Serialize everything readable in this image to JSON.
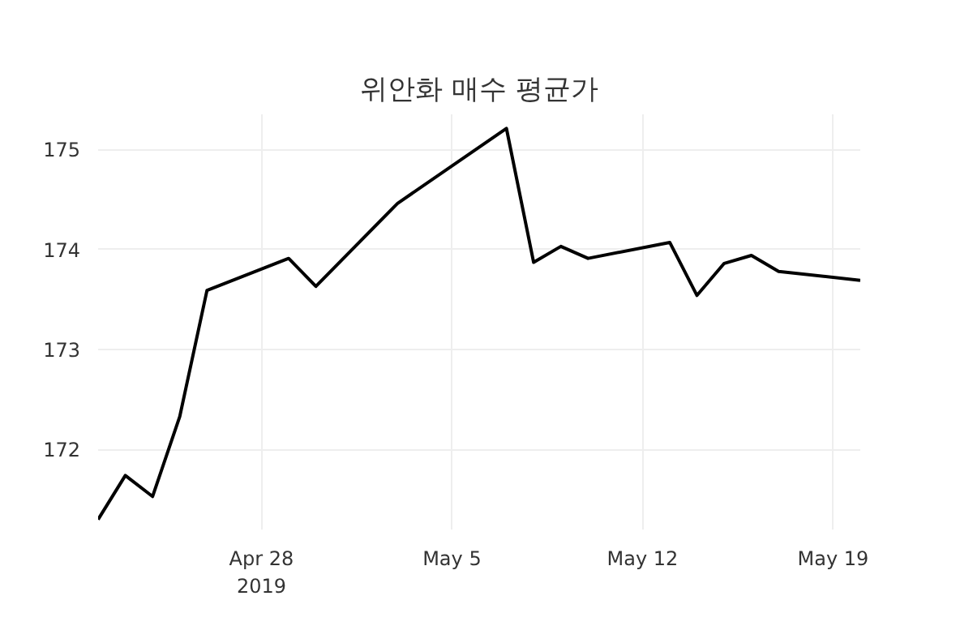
{
  "chart_data": {
    "type": "line",
    "title": "위안화 매수 평균가",
    "x": [
      "2019-04-22",
      "2019-04-23",
      "2019-04-24",
      "2019-04-25",
      "2019-04-26",
      "2019-04-29",
      "2019-04-30",
      "2019-05-03",
      "2019-05-07",
      "2019-05-08",
      "2019-05-09",
      "2019-05-10",
      "2019-05-13",
      "2019-05-14",
      "2019-05-15",
      "2019-05-16",
      "2019-05-17",
      "2019-05-20"
    ],
    "series": [
      {
        "color": "#000000",
        "values": [
          171.3,
          171.74,
          171.53,
          172.33,
          173.59,
          173.91,
          173.63,
          174.46,
          175.21,
          173.87,
          174.03,
          173.91,
          174.07,
          173.54,
          173.86,
          173.94,
          173.78,
          173.69
        ]
      }
    ],
    "xlim": [
      "2019-04-22",
      "2019-05-20"
    ],
    "xticks": [
      {
        "value": "2019-04-28",
        "label": "Apr 28\n2019"
      },
      {
        "value": "2019-05-05",
        "label": "May 5"
      },
      {
        "value": "2019-05-12",
        "label": "May 12"
      },
      {
        "value": "2019-05-19",
        "label": "May 19"
      }
    ],
    "ylim": [
      171.2,
      175.35
    ],
    "yticks": [
      172,
      173,
      174,
      175
    ],
    "grid": true,
    "marker": "none",
    "line_style": "solid"
  }
}
